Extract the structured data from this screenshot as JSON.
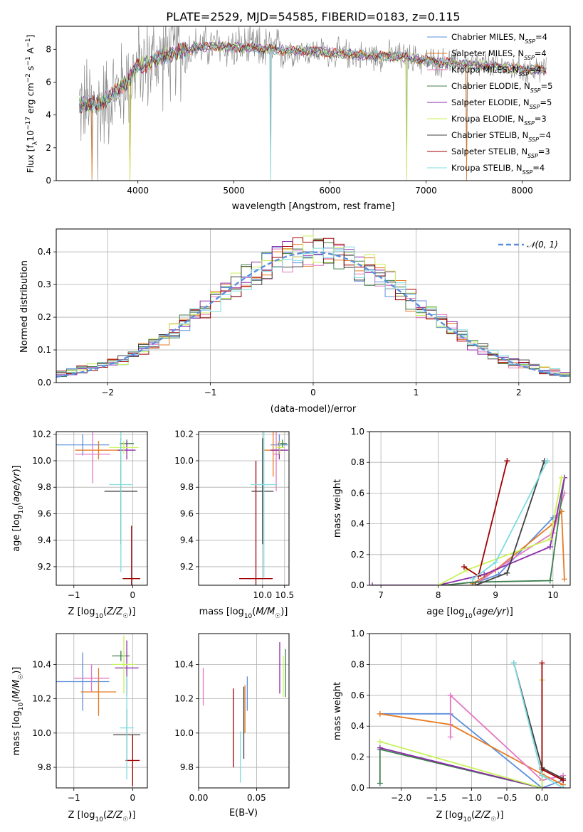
{
  "figure": {
    "title": "PLATE=2529, MJD=54585, FIBERID=0183, z=0.115"
  },
  "colors": {
    "chabrier_miles": "#5b8fdc",
    "salpeter_miles": "#e77a22",
    "kroupa_miles": "#e377c2",
    "chabrier_elodie": "#3f7f4f",
    "salpeter_elodie": "#8b2ca9",
    "kroupa_elodie": "#c8f25a",
    "chabrier_stelib": "#404040",
    "salpeter_stelib": "#a00000",
    "kroupa_stelib": "#7ddce0",
    "data": "#808080",
    "normal": "#5b8fdc"
  },
  "chart_data": [
    {
      "id": "spectrum",
      "type": "line",
      "title": "PLATE=2529, MJD=54585, FIBERID=0183, z=0.115",
      "xlabel": "wavelength [Angstrom, rest frame]",
      "ylabel": "Flux [fλ10⁻¹⁷ erg cm⁻² s⁻¹ A⁻¹]",
      "xlim": [
        3150,
        8500
      ],
      "ylim": [
        0,
        9.4
      ],
      "xticks": [
        4000,
        5000,
        6000,
        7000,
        8000
      ],
      "yticks": [
        0,
        2,
        4,
        6,
        8
      ],
      "legend_position": "upper-right",
      "grid": false,
      "legend": [
        "Chabrier MILES, N_SSP=4",
        "Salpeter MILES, N_SSP=4",
        "Kroupa MILES, N_SSP=4",
        "Chabrier ELODIE, N_SSP=5",
        "Salpeter ELODIE, N_SSP=5",
        "Kroupa ELODIE, N_SSP=3",
        "Chabrier STELIB, N_SSP=4",
        "Salpeter STELIB, N_SSP=3",
        "Kroupa STELIB, N_SSP=4"
      ],
      "continuum": [
        [
          3390,
          4.6
        ],
        [
          3600,
          4.7
        ],
        [
          3800,
          5.5
        ],
        [
          4000,
          6.9
        ],
        [
          4200,
          7.4
        ],
        [
          4400,
          7.8
        ],
        [
          4600,
          8.1
        ],
        [
          4800,
          8.2
        ],
        [
          5000,
          8.1
        ],
        [
          5200,
          8.1
        ],
        [
          5400,
          8.0
        ],
        [
          5600,
          7.9
        ],
        [
          5800,
          7.9
        ],
        [
          6000,
          7.8
        ],
        [
          6200,
          7.7
        ],
        [
          6400,
          7.6
        ],
        [
          6600,
          7.6
        ],
        [
          6800,
          7.5
        ],
        [
          7000,
          7.3
        ],
        [
          7200,
          7.2
        ],
        [
          7400,
          7.1
        ],
        [
          7600,
          7.0
        ],
        [
          7800,
          6.9
        ],
        [
          8000,
          6.8
        ],
        [
          8250,
          6.7
        ]
      ]
    },
    {
      "id": "residuals",
      "type": "line",
      "xlabel": "(data-model)/error",
      "ylabel": "Normed distribution",
      "xlim": [
        -2.5,
        2.5
      ],
      "ylim": [
        0,
        0.47
      ],
      "xticks": [
        -2,
        -1,
        0,
        1,
        2
      ],
      "yticks": [
        0.0,
        0.1,
        0.2,
        0.3,
        0.4
      ],
      "legend": [
        "𝒩(0, 1)"
      ],
      "legend_position": "upper-right",
      "grid": true
    },
    {
      "id": "age_vs_z",
      "type": "scatter",
      "xlabel": "Z [log10(Z/Z☉)]",
      "ylabel": "age  [log10(age/yr)]",
      "xlim": [
        -1.3,
        0.25
      ],
      "ylim": [
        9.06,
        10.22
      ],
      "xticks": [
        -1,
        0
      ],
      "yticks": [
        9.2,
        9.4,
        9.6,
        9.8,
        10.0,
        10.2
      ],
      "grid": true,
      "points": [
        {
          "model": "chabrier_miles",
          "x": -0.85,
          "y": 10.12,
          "xerr": 0.45,
          "yerr": 0.08
        },
        {
          "model": "salpeter_miles",
          "x": -0.58,
          "y": 10.08,
          "xerr": 0.4,
          "yerr": 0.07
        },
        {
          "model": "kroupa_miles",
          "x": -0.68,
          "y": 10.05,
          "xerr": 0.3,
          "yerr": 0.22
        },
        {
          "model": "chabrier_elodie",
          "x": -0.1,
          "y": 10.13,
          "xerr": 0.12,
          "yerr": 0.03
        },
        {
          "model": "salpeter_elodie",
          "x": -0.1,
          "y": 10.08,
          "xerr": 0.15,
          "yerr": 0.07
        },
        {
          "model": "kroupa_elodie",
          "x": -0.15,
          "y": 10.1,
          "xerr": 0.25,
          "yerr": 0.05
        },
        {
          "model": "chabrier_stelib",
          "x": -0.2,
          "y": 9.77,
          "xerr": 0.28,
          "yerr": 0.4
        },
        {
          "model": "salpeter_stelib",
          "x": -0.02,
          "y": 9.11,
          "xerr": 0.15,
          "yerr": 0.4
        },
        {
          "model": "kroupa_stelib",
          "x": -0.2,
          "y": 9.82,
          "xerr": 0.2,
          "yerr": 0.66
        }
      ]
    },
    {
      "id": "age_vs_mass",
      "type": "scatter",
      "xlabel": "mass [log10(M/M☉)]",
      "xlim": [
        8.55,
        10.6
      ],
      "ylim": [
        9.06,
        10.22
      ],
      "xticks": [
        10.0,
        10.5
      ],
      "yticks": [
        9.2,
        9.4,
        9.6,
        9.8,
        10.0,
        10.2
      ],
      "grid": true,
      "points": [
        {
          "model": "chabrier_miles",
          "x": 10.38,
          "y": 10.12,
          "xerr": 0.2,
          "yerr": 0.08
        },
        {
          "model": "salpeter_miles",
          "x": 10.24,
          "y": 10.08,
          "xerr": 0.22,
          "yerr": 0.2
        },
        {
          "model": "kroupa_miles",
          "x": 10.31,
          "y": 10.05,
          "xerr": 0.08,
          "yerr": 0.28
        },
        {
          "model": "chabrier_elodie",
          "x": 10.45,
          "y": 10.13,
          "xerr": 0.1,
          "yerr": 0.03
        },
        {
          "model": "salpeter_elodie",
          "x": 10.38,
          "y": 10.08,
          "xerr": 0.2,
          "yerr": 0.07
        },
        {
          "model": "kroupa_elodie",
          "x": 10.39,
          "y": 10.1,
          "xerr": 0.1,
          "yerr": 0.05
        },
        {
          "model": "chabrier_stelib",
          "x": 10.0,
          "y": 9.77,
          "xerr": 0.25,
          "yerr": 0.4
        },
        {
          "model": "salpeter_stelib",
          "x": 9.85,
          "y": 9.11,
          "xerr": 0.38,
          "yerr": 0.89
        },
        {
          "model": "kroupa_stelib",
          "x": 10.03,
          "y": 9.82,
          "xerr": 0.3,
          "yerr": 0.7
        }
      ]
    },
    {
      "id": "weight_vs_age",
      "type": "line",
      "xlabel": "age  [log10(age/yr)]",
      "ylabel": "mass weight",
      "xlim": [
        6.8,
        10.3
      ],
      "ylim": [
        0,
        1.0
      ],
      "xticks": [
        7,
        8,
        9,
        10
      ],
      "yticks": [
        0.0,
        0.2,
        0.4,
        0.6,
        0.8,
        1.0
      ],
      "grid": true,
      "series": [
        {
          "model": "chabrier_miles",
          "x": [
            8.6,
            9.05,
            10.0,
            10.15
          ],
          "y": [
            0.01,
            0.07,
            0.44,
            0.48
          ]
        },
        {
          "model": "salpeter_miles",
          "x": [
            8.6,
            9.0,
            10.0,
            10.15,
            10.2
          ],
          "y": [
            0.01,
            0.1,
            0.4,
            0.48,
            0.04
          ]
        },
        {
          "model": "kroupa_miles",
          "x": [
            8.7,
            9.2,
            10.0,
            10.2
          ],
          "y": [
            0.02,
            0.15,
            0.34,
            0.6
          ]
        },
        {
          "model": "chabrier_elodie",
          "x": [
            8.1,
            8.6,
            9.95,
            10.2
          ],
          "y": [
            0.0,
            0.02,
            0.03,
            0.7
          ]
        },
        {
          "model": "salpeter_elodie",
          "x": [
            6.85,
            8.0,
            8.8,
            9.95,
            10.2
          ],
          "y": [
            0.0,
            0.0,
            0.07,
            0.25,
            0.7
          ]
        },
        {
          "model": "kroupa_elodie",
          "x": [
            8.0,
            8.5,
            9.95,
            10.15
          ],
          "y": [
            0.0,
            0.1,
            0.3,
            0.7
          ]
        },
        {
          "model": "chabrier_stelib",
          "x": [
            8.65,
            9.2,
            9.85
          ],
          "y": [
            0.0,
            0.08,
            0.81
          ]
        },
        {
          "model": "salpeter_stelib",
          "x": [
            8.45,
            8.7,
            9.2
          ],
          "y": [
            0.12,
            0.06,
            0.81
          ]
        },
        {
          "model": "kroupa_stelib",
          "x": [
            8.6,
            9.0,
            9.9
          ],
          "y": [
            0.04,
            0.15,
            0.81
          ]
        }
      ]
    },
    {
      "id": "mass_vs_z",
      "type": "scatter",
      "xlabel": "Z [log10(Z/Z☉)]",
      "ylabel": "mass [log10(M/M☉)]",
      "xlim": [
        -1.3,
        0.25
      ],
      "ylim": [
        9.68,
        10.58
      ],
      "xticks": [
        -1,
        0
      ],
      "yticks": [
        9.8,
        10.0,
        10.2,
        10.4
      ],
      "grid": true,
      "points": [
        {
          "model": "chabrier_miles",
          "x": -0.85,
          "y": 10.3,
          "xerr": 0.45,
          "yerr": 0.17
        },
        {
          "model": "salpeter_miles",
          "x": -0.58,
          "y": 10.24,
          "xerr": 0.3,
          "yerr": 0.14
        },
        {
          "model": "kroupa_miles",
          "x": -0.7,
          "y": 10.32,
          "xerr": 0.3,
          "yerr": 0.08
        },
        {
          "model": "chabrier_elodie",
          "x": -0.2,
          "y": 10.45,
          "xerr": 0.15,
          "yerr": 0.03
        },
        {
          "model": "salpeter_elodie",
          "x": -0.1,
          "y": 10.38,
          "xerr": 0.2,
          "yerr": 0.16
        },
        {
          "model": "kroupa_elodie",
          "x": -0.15,
          "y": 10.4,
          "xerr": 0.2,
          "yerr": 0.17
        },
        {
          "model": "chabrier_stelib",
          "x": -0.1,
          "y": 9.99,
          "xerr": 0.23,
          "yerr": 0.15
        },
        {
          "model": "salpeter_stelib",
          "x": 0.0,
          "y": 9.84,
          "xerr": 0.12,
          "yerr": 0.15
        },
        {
          "model": "kroupa_stelib",
          "x": -0.1,
          "y": 10.03,
          "xerr": 0.12,
          "yerr": 0.3
        }
      ]
    },
    {
      "id": "mass_vs_ebv",
      "type": "scatter",
      "xlabel": "E(B-V)",
      "xlim": [
        0.0,
        0.078
      ],
      "ylim": [
        9.68,
        10.58
      ],
      "xticks": [
        0.0,
        0.05
      ],
      "yticks": [
        9.8,
        10.0,
        10.2,
        10.4
      ],
      "grid": true,
      "points": [
        {
          "model": "kroupa_miles",
          "x": 0.004,
          "y": 10.27,
          "yerr": 0.11
        },
        {
          "model": "salpeter_stelib",
          "x": 0.03,
          "y": 10.03,
          "yerr": 0.23
        },
        {
          "model": "kroupa_stelib",
          "x": 0.036,
          "y": 9.86,
          "yerr": 0.15
        },
        {
          "model": "chabrier_stelib",
          "x": 0.039,
          "y": 10.06,
          "yerr": 0.21
        },
        {
          "model": "salpeter_miles",
          "x": 0.04,
          "y": 10.14,
          "yerr": 0.14
        },
        {
          "model": "chabrier_miles",
          "x": 0.042,
          "y": 10.23,
          "yerr": 0.1
        },
        {
          "model": "salpeter_elodie",
          "x": 0.07,
          "y": 10.38,
          "yerr": 0.15
        },
        {
          "model": "kroupa_elodie",
          "x": 0.073,
          "y": 10.33,
          "yerr": 0.12
        },
        {
          "model": "chabrier_elodie",
          "x": 0.075,
          "y": 10.35,
          "yerr": 0.14
        }
      ]
    },
    {
      "id": "weight_vs_z",
      "type": "line",
      "xlabel": "Z [log10(Z/Z☉)]",
      "ylabel": "mass weight",
      "xlim": [
        -2.45,
        0.4
      ],
      "ylim": [
        0,
        1.0
      ],
      "xticks": [
        -2.0,
        -1.5,
        -1.0,
        -0.5,
        0.0
      ],
      "yticks": [
        0.0,
        0.2,
        0.4,
        0.6,
        0.8,
        1.0
      ],
      "grid": true,
      "series": [
        {
          "model": "chabrier_miles",
          "x": [
            -2.3,
            -1.3,
            0.0,
            0.3
          ],
          "y": [
            0.48,
            0.48,
            0.0,
            0.05
          ]
        },
        {
          "model": "salpeter_miles",
          "x": [
            -2.3,
            -1.3,
            0.0,
            0.3
          ],
          "y": [
            0.48,
            0.41,
            0.09,
            0.02
          ]
        },
        {
          "model": "kroupa_miles",
          "x": [
            -1.3,
            -1.3,
            0.0,
            0.3
          ],
          "y": [
            0.33,
            0.6,
            0.05,
            0.08
          ]
        },
        {
          "model": "chabrier_elodie",
          "x": [
            -2.3,
            -2.3,
            0.0,
            0.0
          ],
          "y": [
            0.03,
            0.25,
            0.0,
            0.7
          ]
        },
        {
          "model": "salpeter_elodie",
          "x": [
            -2.3,
            0.0,
            0.3
          ],
          "y": [
            0.26,
            0.0,
            0.0
          ]
        },
        {
          "model": "kroupa_elodie",
          "x": [
            -2.3,
            0.0,
            0.0
          ],
          "y": [
            0.3,
            0.0,
            0.7
          ]
        },
        {
          "model": "chabrier_stelib",
          "x": [
            -0.4,
            0.0,
            0.3
          ],
          "y": [
            0.81,
            0.13,
            0.06
          ]
        },
        {
          "model": "salpeter_stelib",
          "x": [
            0.0,
            0.0,
            0.3
          ],
          "y": [
            0.81,
            0.12,
            0.05
          ]
        },
        {
          "model": "kroupa_stelib",
          "x": [
            -0.4,
            0.0,
            0.3
          ],
          "y": [
            0.81,
            0.08,
            0.0
          ]
        }
      ]
    }
  ]
}
